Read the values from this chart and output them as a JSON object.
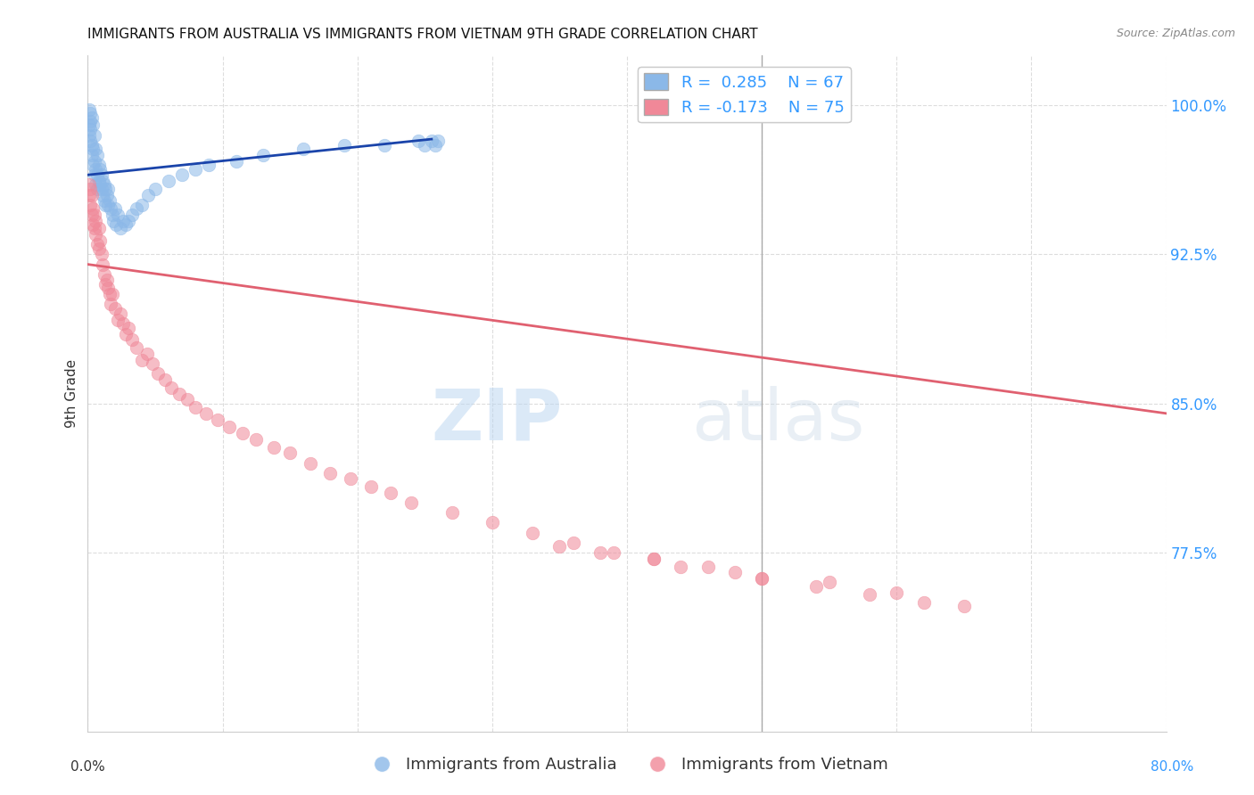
{
  "title": "IMMIGRANTS FROM AUSTRALIA VS IMMIGRANTS FROM VIETNAM 9TH GRADE CORRELATION CHART",
  "source": "Source: ZipAtlas.com",
  "ylabel": "9th Grade",
  "y_tick_labels": [
    "100.0%",
    "92.5%",
    "85.0%",
    "77.5%"
  ],
  "y_tick_values": [
    1.0,
    0.925,
    0.85,
    0.775
  ],
  "xlim": [
    0.0,
    0.8
  ],
  "ylim": [
    0.685,
    1.025
  ],
  "legend_r1": "R =  0.285",
  "legend_n1": "N = 67",
  "legend_r2": "R = -0.173",
  "legend_n2": "N = 75",
  "blue_color": "#8BB8E8",
  "pink_color": "#F08898",
  "blue_line_color": "#1A44AA",
  "pink_line_color": "#E06070",
  "grid_color": "#DDDDDD",
  "watermark_zip": "ZIP",
  "watermark_atlas": "atlas",
  "aus_trendline_x": [
    0.0,
    0.255
  ],
  "aus_trendline_y": [
    0.965,
    0.983
  ],
  "viet_trendline_x": [
    0.0,
    0.8
  ],
  "viet_trendline_y": [
    0.92,
    0.845
  ],
  "background_color": "#FFFFFF",
  "title_fontsize": 11,
  "right_label_color": "#3399FF",
  "aus_x": [
    0.001,
    0.001,
    0.001,
    0.002,
    0.002,
    0.002,
    0.002,
    0.003,
    0.003,
    0.003,
    0.004,
    0.004,
    0.004,
    0.005,
    0.005,
    0.005,
    0.006,
    0.006,
    0.006,
    0.007,
    0.007,
    0.007,
    0.008,
    0.008,
    0.009,
    0.009,
    0.01,
    0.01,
    0.011,
    0.011,
    0.012,
    0.012,
    0.013,
    0.013,
    0.014,
    0.015,
    0.015,
    0.016,
    0.017,
    0.018,
    0.019,
    0.02,
    0.021,
    0.022,
    0.024,
    0.026,
    0.028,
    0.03,
    0.033,
    0.036,
    0.04,
    0.045,
    0.05,
    0.06,
    0.07,
    0.08,
    0.09,
    0.11,
    0.13,
    0.16,
    0.19,
    0.22,
    0.245,
    0.25,
    0.255,
    0.258,
    0.26
  ],
  "aus_y": [
    0.99,
    0.985,
    0.998,
    0.992,
    0.996,
    0.988,
    0.982,
    0.994,
    0.98,
    0.975,
    0.99,
    0.978,
    0.97,
    0.985,
    0.972,
    0.965,
    0.978,
    0.968,
    0.96,
    0.975,
    0.965,
    0.958,
    0.97,
    0.962,
    0.968,
    0.96,
    0.965,
    0.958,
    0.962,
    0.955,
    0.96,
    0.952,
    0.958,
    0.95,
    0.955,
    0.958,
    0.95,
    0.952,
    0.948,
    0.945,
    0.942,
    0.948,
    0.94,
    0.945,
    0.938,
    0.942,
    0.94,
    0.942,
    0.945,
    0.948,
    0.95,
    0.955,
    0.958,
    0.962,
    0.965,
    0.968,
    0.97,
    0.972,
    0.975,
    0.978,
    0.98,
    0.98,
    0.982,
    0.98,
    0.982,
    0.98,
    0.982
  ],
  "viet_x": [
    0.001,
    0.001,
    0.002,
    0.002,
    0.003,
    0.003,
    0.004,
    0.004,
    0.005,
    0.005,
    0.006,
    0.006,
    0.007,
    0.008,
    0.008,
    0.009,
    0.01,
    0.011,
    0.012,
    0.013,
    0.014,
    0.015,
    0.016,
    0.017,
    0.018,
    0.02,
    0.022,
    0.024,
    0.026,
    0.028,
    0.03,
    0.033,
    0.036,
    0.04,
    0.044,
    0.048,
    0.052,
    0.057,
    0.062,
    0.068,
    0.074,
    0.08,
    0.088,
    0.096,
    0.105,
    0.115,
    0.125,
    0.138,
    0.15,
    0.165,
    0.18,
    0.195,
    0.21,
    0.225,
    0.24,
    0.27,
    0.3,
    0.33,
    0.36,
    0.39,
    0.42,
    0.46,
    0.5,
    0.54,
    0.58,
    0.62,
    0.65,
    0.6,
    0.55,
    0.5,
    0.48,
    0.44,
    0.42,
    0.38,
    0.35
  ],
  "viet_y": [
    0.955,
    0.96,
    0.95,
    0.958,
    0.945,
    0.955,
    0.94,
    0.948,
    0.938,
    0.945,
    0.935,
    0.942,
    0.93,
    0.938,
    0.928,
    0.932,
    0.925,
    0.92,
    0.915,
    0.91,
    0.912,
    0.908,
    0.905,
    0.9,
    0.905,
    0.898,
    0.892,
    0.895,
    0.89,
    0.885,
    0.888,
    0.882,
    0.878,
    0.872,
    0.875,
    0.87,
    0.865,
    0.862,
    0.858,
    0.855,
    0.852,
    0.848,
    0.845,
    0.842,
    0.838,
    0.835,
    0.832,
    0.828,
    0.825,
    0.82,
    0.815,
    0.812,
    0.808,
    0.805,
    0.8,
    0.795,
    0.79,
    0.785,
    0.78,
    0.775,
    0.772,
    0.768,
    0.762,
    0.758,
    0.754,
    0.75,
    0.748,
    0.755,
    0.76,
    0.762,
    0.765,
    0.768,
    0.772,
    0.775,
    0.778
  ]
}
